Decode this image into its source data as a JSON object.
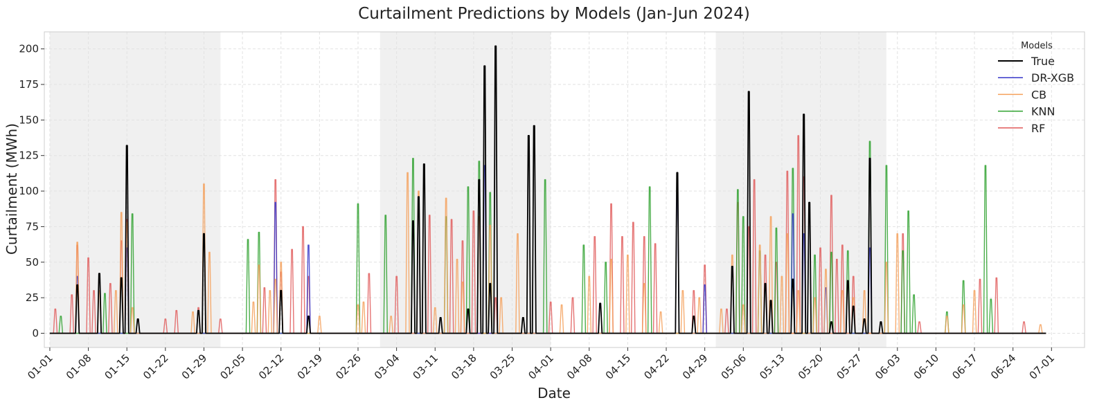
{
  "chart_data": {
    "type": "line",
    "title": "Curtailment Predictions by Models (Jan-Jun 2024)",
    "xlabel": "Date",
    "ylabel": "Curtailment (MWh)",
    "xlim": [
      "2023-12-31",
      "2024-07-07"
    ],
    "ylim": [
      -10,
      212
    ],
    "y_ticks": [
      0,
      25,
      50,
      75,
      100,
      125,
      150,
      175,
      200
    ],
    "x_tick_dates": [
      "2024-01-01",
      "2024-01-08",
      "2024-01-15",
      "2024-01-22",
      "2024-01-29",
      "2024-02-05",
      "2024-02-12",
      "2024-02-19",
      "2024-02-26",
      "2024-03-04",
      "2024-03-11",
      "2024-03-18",
      "2024-03-25",
      "2024-04-01",
      "2024-04-08",
      "2024-04-15",
      "2024-04-22",
      "2024-04-29",
      "2024-05-06",
      "2024-05-13",
      "2024-05-20",
      "2024-05-27",
      "2024-06-03",
      "2024-06-10",
      "2024-06-17",
      "2024-06-24",
      "2024-07-01"
    ],
    "x_tick_labels": [
      "01-01",
      "01-08",
      "01-15",
      "01-22",
      "01-29",
      "02-05",
      "02-12",
      "02-19",
      "02-26",
      "03-04",
      "03-11",
      "03-18",
      "03-25",
      "04-01",
      "04-08",
      "04-15",
      "04-22",
      "04-29",
      "05-06",
      "05-13",
      "05-20",
      "05-27",
      "06-03",
      "06-10",
      "06-17",
      "06-24",
      "07-01"
    ],
    "shaded_periods": [
      [
        "2024-01-01",
        "2024-02-01"
      ],
      [
        "2024-03-01",
        "2024-04-01"
      ],
      [
        "2024-05-01",
        "2024-06-01"
      ]
    ],
    "grid": true,
    "legend": {
      "title": "Models",
      "placement": "top-right"
    },
    "series": [
      {
        "name": "True",
        "color": "#000000",
        "points": [
          [
            "2024-01-06",
            34
          ],
          [
            "2024-01-10",
            42
          ],
          [
            "2024-01-14",
            39
          ],
          [
            "2024-01-15",
            132
          ],
          [
            "2024-01-17",
            10
          ],
          [
            "2024-01-28",
            16
          ],
          [
            "2024-01-29",
            70
          ],
          [
            "2024-02-12",
            30
          ],
          [
            "2024-02-17",
            12
          ],
          [
            "2024-03-07",
            79
          ],
          [
            "2024-03-08",
            96
          ],
          [
            "2024-03-09",
            119
          ],
          [
            "2024-03-12",
            11
          ],
          [
            "2024-03-17",
            17
          ],
          [
            "2024-03-19",
            108
          ],
          [
            "2024-03-20",
            188
          ],
          [
            "2024-03-21",
            35
          ],
          [
            "2024-03-22",
            202
          ],
          [
            "2024-03-27",
            11
          ],
          [
            "2024-03-28",
            139
          ],
          [
            "2024-03-29",
            146
          ],
          [
            "2024-04-10",
            21
          ],
          [
            "2024-04-24",
            113
          ],
          [
            "2024-04-27",
            12
          ],
          [
            "2024-05-04",
            47
          ],
          [
            "2024-05-07",
            170
          ],
          [
            "2024-05-10",
            35
          ],
          [
            "2024-05-11",
            23
          ],
          [
            "2024-05-15",
            38
          ],
          [
            "2024-05-17",
            154
          ],
          [
            "2024-05-18",
            92
          ],
          [
            "2024-05-22",
            8
          ],
          [
            "2024-05-25",
            37
          ],
          [
            "2024-05-26",
            19
          ],
          [
            "2024-05-28",
            10
          ],
          [
            "2024-05-29",
            123
          ],
          [
            "2024-05-31",
            8
          ]
        ]
      },
      {
        "name": "DR-XGB",
        "color": "#3535c8",
        "points": [
          [
            "2024-01-06",
            40
          ],
          [
            "2024-01-15",
            60
          ],
          [
            "2024-02-11",
            92
          ],
          [
            "2024-02-17",
            62
          ],
          [
            "2024-03-20",
            118
          ],
          [
            "2024-04-24",
            99
          ],
          [
            "2024-04-29",
            34
          ],
          [
            "2024-05-15",
            84
          ],
          [
            "2024-05-17",
            70
          ],
          [
            "2024-05-21",
            32
          ],
          [
            "2024-05-29",
            60
          ]
        ]
      },
      {
        "name": "CB",
        "color": "#f5a05a",
        "points": [
          [
            "2024-01-06",
            64
          ],
          [
            "2024-01-10",
            30
          ],
          [
            "2024-01-13",
            30
          ],
          [
            "2024-01-14",
            85
          ],
          [
            "2024-01-15",
            78
          ],
          [
            "2024-01-16",
            18
          ],
          [
            "2024-01-27",
            15
          ],
          [
            "2024-01-29",
            105
          ],
          [
            "2024-01-30",
            57
          ],
          [
            "2024-02-07",
            22
          ],
          [
            "2024-02-08",
            48
          ],
          [
            "2024-02-10",
            30
          ],
          [
            "2024-02-11",
            38
          ],
          [
            "2024-02-12",
            50
          ],
          [
            "2024-02-19",
            12
          ],
          [
            "2024-02-26",
            20
          ],
          [
            "2024-02-27",
            22
          ],
          [
            "2024-03-03",
            12
          ],
          [
            "2024-03-06",
            113
          ],
          [
            "2024-03-08",
            100
          ],
          [
            "2024-03-11",
            18
          ],
          [
            "2024-03-13",
            95
          ],
          [
            "2024-03-15",
            52
          ],
          [
            "2024-03-16",
            36
          ],
          [
            "2024-03-19",
            82
          ],
          [
            "2024-03-21",
            76
          ],
          [
            "2024-03-23",
            25
          ],
          [
            "2024-03-26",
            70
          ],
          [
            "2024-04-03",
            20
          ],
          [
            "2024-04-08",
            40
          ],
          [
            "2024-04-12",
            52
          ],
          [
            "2024-04-15",
            55
          ],
          [
            "2024-04-18",
            35
          ],
          [
            "2024-04-21",
            15
          ],
          [
            "2024-04-25",
            30
          ],
          [
            "2024-04-28",
            25
          ],
          [
            "2024-05-02",
            17
          ],
          [
            "2024-05-04",
            55
          ],
          [
            "2024-05-06",
            20
          ],
          [
            "2024-05-09",
            62
          ],
          [
            "2024-05-11",
            82
          ],
          [
            "2024-05-13",
            40
          ],
          [
            "2024-05-14",
            70
          ],
          [
            "2024-05-16",
            30
          ],
          [
            "2024-05-19",
            25
          ],
          [
            "2024-05-21",
            45
          ],
          [
            "2024-05-24",
            30
          ],
          [
            "2024-05-26",
            25
          ],
          [
            "2024-05-28",
            30
          ],
          [
            "2024-06-01",
            50
          ],
          [
            "2024-06-03",
            70
          ],
          [
            "2024-06-12",
            12
          ],
          [
            "2024-06-15",
            20
          ],
          [
            "2024-06-17",
            30
          ],
          [
            "2024-06-29",
            6
          ]
        ]
      },
      {
        "name": "KNN",
        "color": "#2ca02c",
        "points": [
          [
            "2024-01-03",
            12
          ],
          [
            "2024-01-11",
            28
          ],
          [
            "2024-01-16",
            84
          ],
          [
            "2024-02-06",
            66
          ],
          [
            "2024-02-08",
            71
          ],
          [
            "2024-02-26",
            91
          ],
          [
            "2024-03-02",
            83
          ],
          [
            "2024-03-07",
            123
          ],
          [
            "2024-03-13",
            82
          ],
          [
            "2024-03-17",
            103
          ],
          [
            "2024-03-19",
            121
          ],
          [
            "2024-03-21",
            99
          ],
          [
            "2024-03-31",
            108
          ],
          [
            "2024-04-07",
            62
          ],
          [
            "2024-04-11",
            50
          ],
          [
            "2024-04-19",
            103
          ],
          [
            "2024-05-05",
            101
          ],
          [
            "2024-05-06",
            82
          ],
          [
            "2024-05-09",
            58
          ],
          [
            "2024-05-12",
            74
          ],
          [
            "2024-05-15",
            116
          ],
          [
            "2024-05-19",
            55
          ],
          [
            "2024-05-22",
            57
          ],
          [
            "2024-05-25",
            58
          ],
          [
            "2024-05-29",
            135
          ],
          [
            "2024-06-01",
            118
          ],
          [
            "2024-06-04",
            58
          ],
          [
            "2024-06-05",
            86
          ],
          [
            "2024-06-06",
            27
          ],
          [
            "2024-06-12",
            15
          ],
          [
            "2024-06-15",
            37
          ],
          [
            "2024-06-19",
            118
          ],
          [
            "2024-06-20",
            24
          ]
        ]
      },
      {
        "name": "RF",
        "color": "#e05a5a",
        "points": [
          [
            "2024-01-02",
            17
          ],
          [
            "2024-01-05",
            27
          ],
          [
            "2024-01-06",
            62
          ],
          [
            "2024-01-08",
            53
          ],
          [
            "2024-01-09",
            30
          ],
          [
            "2024-01-12",
            35
          ],
          [
            "2024-01-14",
            65
          ],
          [
            "2024-01-15",
            80
          ],
          [
            "2024-01-22",
            10
          ],
          [
            "2024-01-24",
            16
          ],
          [
            "2024-01-28",
            18
          ],
          [
            "2024-02-01",
            10
          ],
          [
            "2024-02-09",
            32
          ],
          [
            "2024-02-11",
            108
          ],
          [
            "2024-02-12",
            43
          ],
          [
            "2024-02-14",
            59
          ],
          [
            "2024-02-16",
            75
          ],
          [
            "2024-02-17",
            40
          ],
          [
            "2024-02-28",
            42
          ],
          [
            "2024-03-04",
            40
          ],
          [
            "2024-03-10",
            83
          ],
          [
            "2024-03-14",
            80
          ],
          [
            "2024-03-16",
            65
          ],
          [
            "2024-03-18",
            86
          ],
          [
            "2024-03-22",
            25
          ],
          [
            "2024-04-01",
            22
          ],
          [
            "2024-04-05",
            25
          ],
          [
            "2024-04-09",
            68
          ],
          [
            "2024-04-12",
            91
          ],
          [
            "2024-04-14",
            68
          ],
          [
            "2024-04-16",
            78
          ],
          [
            "2024-04-18",
            68
          ],
          [
            "2024-04-20",
            63
          ],
          [
            "2024-04-27",
            30
          ],
          [
            "2024-04-29",
            48
          ],
          [
            "2024-05-03",
            17
          ],
          [
            "2024-05-05",
            92
          ],
          [
            "2024-05-07",
            75
          ],
          [
            "2024-05-08",
            108
          ],
          [
            "2024-05-10",
            55
          ],
          [
            "2024-05-12",
            50
          ],
          [
            "2024-05-14",
            114
          ],
          [
            "2024-05-16",
            139
          ],
          [
            "2024-05-17",
            110
          ],
          [
            "2024-05-20",
            60
          ],
          [
            "2024-05-22",
            97
          ],
          [
            "2024-05-23",
            52
          ],
          [
            "2024-05-24",
            62
          ],
          [
            "2024-05-26",
            40
          ],
          [
            "2024-06-04",
            70
          ],
          [
            "2024-06-07",
            8
          ],
          [
            "2024-06-18",
            38
          ],
          [
            "2024-06-21",
            39
          ],
          [
            "2024-06-26",
            8
          ]
        ]
      }
    ]
  }
}
